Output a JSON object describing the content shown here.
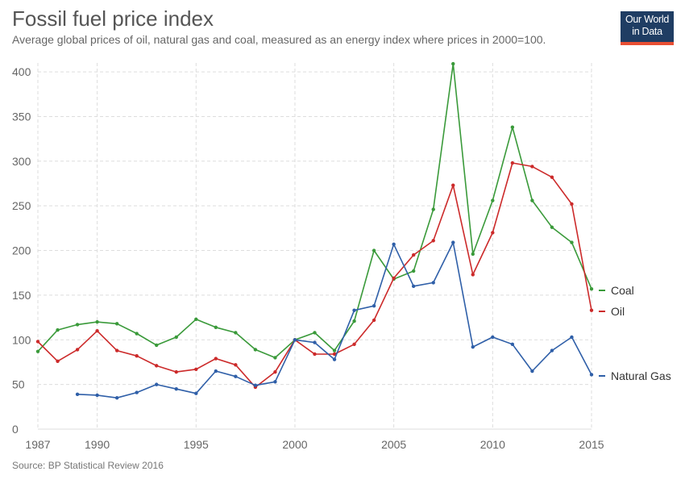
{
  "header": {
    "title": "Fossil fuel price index",
    "subtitle": "Average global prices of oil, natural gas and coal, measured as an energy index where prices in 2000=100.",
    "logo_line1": "Our World",
    "logo_line2": "in Data"
  },
  "footer": {
    "source": "Source: BP Statistical Review 2016"
  },
  "chart_data": {
    "type": "line",
    "title": "Fossil fuel price index",
    "xlabel": "",
    "ylabel": "",
    "xlim": [
      1987,
      2015
    ],
    "ylim": [
      0,
      410
    ],
    "xticks": [
      1987,
      1990,
      1995,
      2000,
      2005,
      2010,
      2015
    ],
    "yticks": [
      0,
      50,
      100,
      150,
      200,
      250,
      300,
      350,
      400
    ],
    "grid": "dashed",
    "legend": "right-end-labels",
    "series": [
      {
        "name": "Coal",
        "color": "#3a9a3a",
        "x": [
          1987,
          1988,
          1989,
          1990,
          1991,
          1992,
          1993,
          1994,
          1995,
          1996,
          1997,
          1998,
          1999,
          2000,
          2001,
          2002,
          2003,
          2004,
          2005,
          2006,
          2007,
          2008,
          2009,
          2010,
          2011,
          2012,
          2013,
          2014,
          2015
        ],
        "values": [
          87,
          111,
          117,
          120,
          118,
          107,
          94,
          103,
          123,
          114,
          108,
          89,
          80,
          100,
          108,
          88,
          121,
          200,
          168,
          177,
          246,
          409,
          196,
          256,
          338,
          256,
          226,
          209,
          157
        ]
      },
      {
        "name": "Oil",
        "color": "#cc2a2a",
        "x": [
          1987,
          1988,
          1989,
          1990,
          1991,
          1992,
          1993,
          1994,
          1995,
          1996,
          1997,
          1998,
          1999,
          2000,
          2001,
          2002,
          2003,
          2004,
          2005,
          2006,
          2007,
          2008,
          2009,
          2010,
          2011,
          2012,
          2013,
          2014,
          2015
        ],
        "values": [
          98,
          76,
          89,
          110,
          88,
          82,
          71,
          64,
          67,
          79,
          72,
          47,
          64,
          100,
          84,
          84,
          95,
          122,
          169,
          195,
          211,
          273,
          173,
          220,
          298,
          294,
          282,
          252,
          133
        ]
      },
      {
        "name": "Natural Gas",
        "color": "#2f5fa8",
        "x": [
          1989,
          1990,
          1991,
          1992,
          1993,
          1994,
          1995,
          1996,
          1997,
          1998,
          1999,
          2000,
          2001,
          2002,
          2003,
          2004,
          2005,
          2006,
          2007,
          2008,
          2009,
          2010,
          2011,
          2012,
          2013,
          2014,
          2015
        ],
        "values": [
          39,
          38,
          35,
          41,
          50,
          45,
          40,
          65,
          59,
          49,
          53,
          100,
          97,
          78,
          133,
          138,
          207,
          160,
          164,
          209,
          92,
          103,
          95,
          65,
          88,
          103,
          61
        ]
      }
    ]
  }
}
